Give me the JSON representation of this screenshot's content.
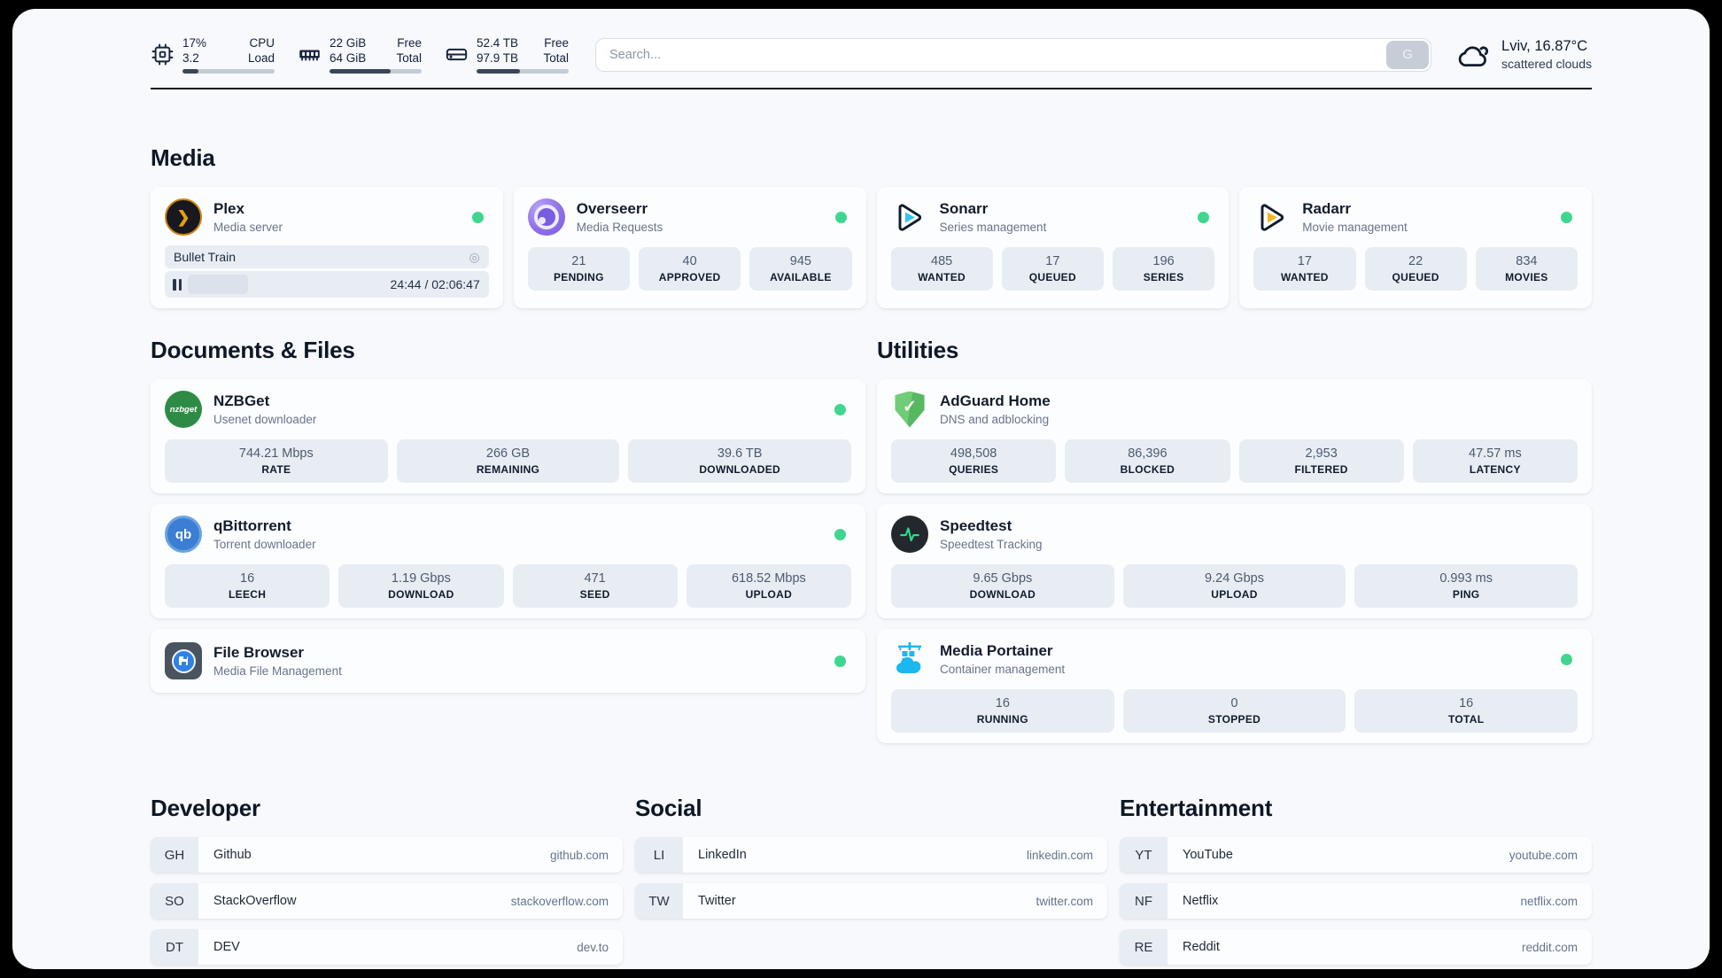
{
  "system": {
    "cpu": {
      "value_top": "17%",
      "value_bottom": "3.2",
      "label_top": "CPU",
      "label_bottom": "Load",
      "progress_pct": 17
    },
    "memory": {
      "value_top": "22 GiB",
      "value_bottom": "64 GiB",
      "label_top": "Free",
      "label_bottom": "Total",
      "progress_pct": 66
    },
    "disk": {
      "value_top": "52.4 TB",
      "value_bottom": "97.9 TB",
      "label_top": "Free",
      "label_bottom": "Total",
      "progress_pct": 47
    }
  },
  "search": {
    "placeholder": "Search...",
    "button_label": "G"
  },
  "weather": {
    "location": "Lviv, 16.87°C",
    "condition": "scattered clouds"
  },
  "sections": {
    "media": {
      "title": "Media"
    },
    "documents": {
      "title": "Documents & Files"
    },
    "utilities": {
      "title": "Utilities"
    },
    "developer": {
      "title": "Developer"
    },
    "social": {
      "title": "Social"
    },
    "entertainment": {
      "title": "Entertainment"
    }
  },
  "apps": {
    "plex": {
      "name": "Plex",
      "description": "Media server",
      "now_playing": {
        "title": "Bullet Train",
        "time": "24:44 / 02:06:47",
        "progress_pct": 19.5
      }
    },
    "overseerr": {
      "name": "Overseerr",
      "description": "Media Requests",
      "stats": [
        {
          "value": "21",
          "label": "PENDING"
        },
        {
          "value": "40",
          "label": "APPROVED"
        },
        {
          "value": "945",
          "label": "AVAILABLE"
        }
      ]
    },
    "sonarr": {
      "name": "Sonarr",
      "description": "Series management",
      "stats": [
        {
          "value": "485",
          "label": "WANTED"
        },
        {
          "value": "17",
          "label": "QUEUED"
        },
        {
          "value": "196",
          "label": "SERIES"
        }
      ]
    },
    "radarr": {
      "name": "Radarr",
      "description": "Movie management",
      "stats": [
        {
          "value": "17",
          "label": "WANTED"
        },
        {
          "value": "22",
          "label": "QUEUED"
        },
        {
          "value": "834",
          "label": "MOVIES"
        }
      ]
    },
    "nzbget": {
      "name": "NZBGet",
      "description": "Usenet downloader",
      "stats": [
        {
          "value": "744.21 Mbps",
          "label": "RATE"
        },
        {
          "value": "266 GB",
          "label": "REMAINING"
        },
        {
          "value": "39.6 TB",
          "label": "DOWNLOADED"
        }
      ]
    },
    "qbittorrent": {
      "name": "qBittorrent",
      "description": "Torrent downloader",
      "stats": [
        {
          "value": "16",
          "label": "LEECH"
        },
        {
          "value": "1.19 Gbps",
          "label": "DOWNLOAD"
        },
        {
          "value": "471",
          "label": "SEED"
        },
        {
          "value": "618.52 Mbps",
          "label": "UPLOAD"
        }
      ]
    },
    "filebrowser": {
      "name": "File Browser",
      "description": "Media File Management"
    },
    "adguard": {
      "name": "AdGuard Home",
      "description": "DNS and adblocking",
      "stats": [
        {
          "value": "498,508",
          "label": "QUERIES"
        },
        {
          "value": "86,396",
          "label": "BLOCKED"
        },
        {
          "value": "2,953",
          "label": "FILTERED"
        },
        {
          "value": "47.57 ms",
          "label": "LATENCY"
        }
      ]
    },
    "speedtest": {
      "name": "Speedtest",
      "description": "Speedtest Tracking",
      "stats": [
        {
          "value": "9.65 Gbps",
          "label": "DOWNLOAD"
        },
        {
          "value": "9.24 Gbps",
          "label": "UPLOAD"
        },
        {
          "value": "0.993 ms",
          "label": "PING"
        }
      ]
    },
    "portainer": {
      "name": "Media Portainer",
      "description": "Container management",
      "stats": [
        {
          "value": "16",
          "label": "RUNNING"
        },
        {
          "value": "0",
          "label": "STOPPED"
        },
        {
          "value": "16",
          "label": "TOTAL"
        }
      ]
    }
  },
  "bookmarks": {
    "developer": [
      {
        "abbr": "GH",
        "name": "Github",
        "url": "github.com"
      },
      {
        "abbr": "SO",
        "name": "StackOverflow",
        "url": "stackoverflow.com"
      },
      {
        "abbr": "DT",
        "name": "DEV",
        "url": "dev.to"
      }
    ],
    "social": [
      {
        "abbr": "LI",
        "name": "LinkedIn",
        "url": "linkedin.com"
      },
      {
        "abbr": "TW",
        "name": "Twitter",
        "url": "twitter.com"
      }
    ],
    "entertainment": [
      {
        "abbr": "YT",
        "name": "YouTube",
        "url": "youtube.com"
      },
      {
        "abbr": "NF",
        "name": "Netflix",
        "url": "netflix.com"
      },
      {
        "abbr": "RE",
        "name": "Reddit",
        "url": "reddit.com"
      }
    ]
  },
  "icons": {
    "plex_glyph": "❯",
    "session_glyph": "◎",
    "adguard_check_glyph": "✓",
    "nzbget_logo_text": "nzbget",
    "qbittorrent_logo_text": "qb"
  },
  "colors": {
    "status_online": "#3fd68f",
    "plex_accent": "#e5a00d",
    "sonarr_accent": "#35c5f1",
    "radarr_accent": "#f5b423",
    "nzbget_accent": "#2e8b45",
    "qbittorrent_accent": "#3c7ed3",
    "adguard_accent": "#5fbf6a",
    "speedtest_accent": "#27e38d",
    "portainer_accent": "#1ab8ee"
  }
}
